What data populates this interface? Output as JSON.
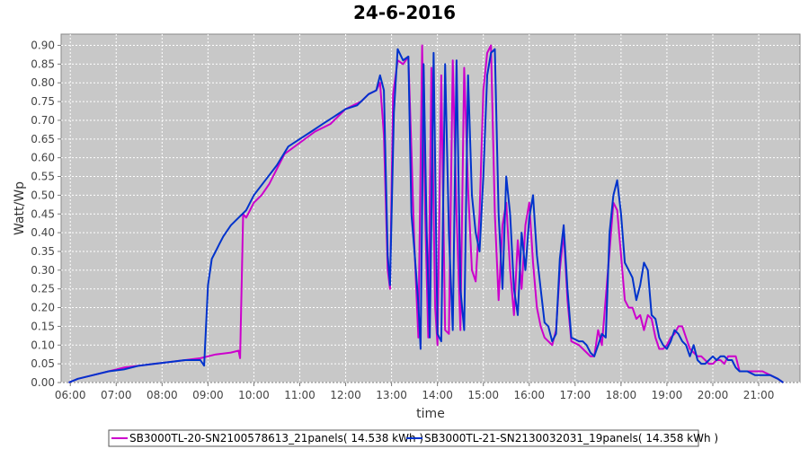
{
  "chart_data": {
    "type": "line",
    "title": "24-6-2016",
    "xlabel": "time",
    "ylabel": "Watt/Wp",
    "xlim": [
      "05:48",
      "21:54"
    ],
    "ylim": [
      0,
      0.93
    ],
    "x_ticks": [
      "06:00",
      "07:00",
      "08:00",
      "09:00",
      "10:00",
      "11:00",
      "12:00",
      "13:00",
      "14:00",
      "15:00",
      "16:00",
      "17:00",
      "18:00",
      "19:00",
      "20:00",
      "21:00"
    ],
    "y_ticks": [
      "0.00",
      "0.05",
      "0.10",
      "0.15",
      "0.20",
      "0.25",
      "0.30",
      "0.35",
      "0.40",
      "0.45",
      "0.50",
      "0.55",
      "0.60",
      "0.65",
      "0.70",
      "0.75",
      "0.80",
      "0.85",
      "0.90"
    ],
    "grid": true,
    "legend_position": "bottom",
    "colors": {
      "plot_background": "#c8c8c8",
      "grid": "#ffffff"
    },
    "series": [
      {
        "name": "SB3000TL-20-SN2100578613_21panels( 14.538 kWh )",
        "color": "#cc00cc",
        "points": [
          [
            "05:58",
            0.0
          ],
          [
            "06:10",
            0.01
          ],
          [
            "06:30",
            0.02
          ],
          [
            "06:50",
            0.03
          ],
          [
            "07:10",
            0.04
          ],
          [
            "07:30",
            0.045
          ],
          [
            "07:50",
            0.05
          ],
          [
            "08:10",
            0.055
          ],
          [
            "08:30",
            0.06
          ],
          [
            "08:50",
            0.065
          ],
          [
            "09:10",
            0.075
          ],
          [
            "09:30",
            0.08
          ],
          [
            "09:40",
            0.085
          ],
          [
            "09:42",
            0.065
          ],
          [
            "09:46",
            0.45
          ],
          [
            "09:50",
            0.44
          ],
          [
            "10:00",
            0.48
          ],
          [
            "10:10",
            0.5
          ],
          [
            "10:20",
            0.53
          ],
          [
            "10:30",
            0.57
          ],
          [
            "10:40",
            0.61
          ],
          [
            "11:00",
            0.64
          ],
          [
            "11:20",
            0.67
          ],
          [
            "11:40",
            0.69
          ],
          [
            "12:00",
            0.73
          ],
          [
            "12:20",
            0.75
          ],
          [
            "12:30",
            0.77
          ],
          [
            "12:40",
            0.78
          ],
          [
            "12:45",
            0.8
          ],
          [
            "12:50",
            0.66
          ],
          [
            "12:55",
            0.3
          ],
          [
            "12:58",
            0.25
          ],
          [
            "13:02",
            0.77
          ],
          [
            "13:08",
            0.86
          ],
          [
            "13:15",
            0.85
          ],
          [
            "13:22",
            0.87
          ],
          [
            "13:26",
            0.62
          ],
          [
            "13:30",
            0.36
          ],
          [
            "13:35",
            0.12
          ],
          [
            "13:40",
            0.9
          ],
          [
            "13:44",
            0.45
          ],
          [
            "13:48",
            0.12
          ],
          [
            "13:52",
            0.84
          ],
          [
            "13:57",
            0.2
          ],
          [
            "14:00",
            0.1
          ],
          [
            "14:05",
            0.82
          ],
          [
            "14:10",
            0.14
          ],
          [
            "14:15",
            0.13
          ],
          [
            "14:20",
            0.86
          ],
          [
            "14:25",
            0.45
          ],
          [
            "14:30",
            0.14
          ],
          [
            "14:35",
            0.84
          ],
          [
            "14:40",
            0.52
          ],
          [
            "14:45",
            0.3
          ],
          [
            "14:50",
            0.27
          ],
          [
            "14:55",
            0.45
          ],
          [
            "15:00",
            0.78
          ],
          [
            "15:05",
            0.88
          ],
          [
            "15:10",
            0.9
          ],
          [
            "15:15",
            0.45
          ],
          [
            "15:20",
            0.22
          ],
          [
            "15:25",
            0.42
          ],
          [
            "15:30",
            0.48
          ],
          [
            "15:35",
            0.3
          ],
          [
            "15:40",
            0.18
          ],
          [
            "15:45",
            0.38
          ],
          [
            "15:50",
            0.25
          ],
          [
            "15:55",
            0.42
          ],
          [
            "16:00",
            0.48
          ],
          [
            "16:05",
            0.32
          ],
          [
            "16:10",
            0.2
          ],
          [
            "16:15",
            0.15
          ],
          [
            "16:20",
            0.12
          ],
          [
            "16:25",
            0.11
          ],
          [
            "16:30",
            0.1
          ],
          [
            "16:35",
            0.14
          ],
          [
            "16:40",
            0.3
          ],
          [
            "16:45",
            0.4
          ],
          [
            "16:50",
            0.22
          ],
          [
            "16:55",
            0.11
          ],
          [
            "17:05",
            0.1
          ],
          [
            "17:15",
            0.08
          ],
          [
            "17:20",
            0.07
          ],
          [
            "17:25",
            0.07
          ],
          [
            "17:30",
            0.14
          ],
          [
            "17:35",
            0.1
          ],
          [
            "17:45",
            0.35
          ],
          [
            "17:50",
            0.48
          ],
          [
            "17:55",
            0.46
          ],
          [
            "18:00",
            0.34
          ],
          [
            "18:05",
            0.22
          ],
          [
            "18:10",
            0.2
          ],
          [
            "18:15",
            0.2
          ],
          [
            "18:20",
            0.17
          ],
          [
            "18:25",
            0.18
          ],
          [
            "18:30",
            0.14
          ],
          [
            "18:35",
            0.18
          ],
          [
            "18:40",
            0.17
          ],
          [
            "18:45",
            0.12
          ],
          [
            "18:50",
            0.09
          ],
          [
            "18:55",
            0.09
          ],
          [
            "19:00",
            0.1
          ],
          [
            "19:05",
            0.12
          ],
          [
            "19:10",
            0.13
          ],
          [
            "19:15",
            0.15
          ],
          [
            "19:20",
            0.15
          ],
          [
            "19:25",
            0.12
          ],
          [
            "19:30",
            0.09
          ],
          [
            "19:35",
            0.08
          ],
          [
            "19:40",
            0.07
          ],
          [
            "19:45",
            0.07
          ],
          [
            "19:50",
            0.06
          ],
          [
            "19:55",
            0.05
          ],
          [
            "20:00",
            0.05
          ],
          [
            "20:05",
            0.06
          ],
          [
            "20:10",
            0.06
          ],
          [
            "20:15",
            0.05
          ],
          [
            "20:20",
            0.07
          ],
          [
            "20:30",
            0.07
          ],
          [
            "20:35",
            0.03
          ],
          [
            "20:45",
            0.03
          ],
          [
            "20:55",
            0.03
          ],
          [
            "21:05",
            0.03
          ],
          [
            "21:15",
            0.02
          ],
          [
            "21:25",
            0.01
          ],
          [
            "21:32",
            0.0
          ]
        ]
      },
      {
        "name": "SB3000TL-21-SN2130032031_19panels( 14.358 kWh )",
        "color": "#0033cc",
        "points": [
          [
            "05:58",
            0.0
          ],
          [
            "06:10",
            0.01
          ],
          [
            "06:30",
            0.02
          ],
          [
            "06:50",
            0.03
          ],
          [
            "07:10",
            0.035
          ],
          [
            "07:30",
            0.045
          ],
          [
            "07:50",
            0.05
          ],
          [
            "08:10",
            0.055
          ],
          [
            "08:30",
            0.06
          ],
          [
            "08:50",
            0.06
          ],
          [
            "08:55",
            0.045
          ],
          [
            "09:00",
            0.26
          ],
          [
            "09:05",
            0.33
          ],
          [
            "09:10",
            0.35
          ],
          [
            "09:15",
            0.37
          ],
          [
            "09:20",
            0.39
          ],
          [
            "09:30",
            0.42
          ],
          [
            "09:40",
            0.44
          ],
          [
            "09:50",
            0.46
          ],
          [
            "10:00",
            0.5
          ],
          [
            "10:15",
            0.54
          ],
          [
            "10:30",
            0.58
          ],
          [
            "10:45",
            0.63
          ],
          [
            "11:00",
            0.65
          ],
          [
            "11:15",
            0.67
          ],
          [
            "11:30",
            0.69
          ],
          [
            "11:45",
            0.71
          ],
          [
            "12:00",
            0.73
          ],
          [
            "12:15",
            0.74
          ],
          [
            "12:30",
            0.77
          ],
          [
            "12:40",
            0.78
          ],
          [
            "12:45",
            0.82
          ],
          [
            "12:50",
            0.78
          ],
          [
            "12:55",
            0.34
          ],
          [
            "12:58",
            0.26
          ],
          [
            "13:03",
            0.72
          ],
          [
            "13:08",
            0.89
          ],
          [
            "13:15",
            0.86
          ],
          [
            "13:22",
            0.87
          ],
          [
            "13:26",
            0.45
          ],
          [
            "13:30",
            0.35
          ],
          [
            "13:35",
            0.21
          ],
          [
            "13:38",
            0.09
          ],
          [
            "13:42",
            0.85
          ],
          [
            "13:46",
            0.4
          ],
          [
            "13:50",
            0.12
          ],
          [
            "13:55",
            0.88
          ],
          [
            "14:00",
            0.13
          ],
          [
            "14:05",
            0.11
          ],
          [
            "14:10",
            0.85
          ],
          [
            "14:15",
            0.4
          ],
          [
            "14:20",
            0.14
          ],
          [
            "14:25",
            0.86
          ],
          [
            "14:30",
            0.25
          ],
          [
            "14:35",
            0.14
          ],
          [
            "14:40",
            0.82
          ],
          [
            "14:45",
            0.5
          ],
          [
            "14:50",
            0.4
          ],
          [
            "14:55",
            0.35
          ],
          [
            "15:00",
            0.55
          ],
          [
            "15:05",
            0.82
          ],
          [
            "15:10",
            0.88
          ],
          [
            "15:15",
            0.89
          ],
          [
            "15:20",
            0.45
          ],
          [
            "15:25",
            0.25
          ],
          [
            "15:30",
            0.55
          ],
          [
            "15:35",
            0.45
          ],
          [
            "15:40",
            0.25
          ],
          [
            "15:45",
            0.18
          ],
          [
            "15:50",
            0.4
          ],
          [
            "15:55",
            0.3
          ],
          [
            "16:00",
            0.44
          ],
          [
            "16:05",
            0.5
          ],
          [
            "16:10",
            0.34
          ],
          [
            "16:15",
            0.25
          ],
          [
            "16:20",
            0.16
          ],
          [
            "16:25",
            0.15
          ],
          [
            "16:30",
            0.11
          ],
          [
            "16:35",
            0.13
          ],
          [
            "16:40",
            0.33
          ],
          [
            "16:45",
            0.42
          ],
          [
            "16:50",
            0.25
          ],
          [
            "16:55",
            0.12
          ],
          [
            "17:05",
            0.11
          ],
          [
            "17:10",
            0.11
          ],
          [
            "17:15",
            0.1
          ],
          [
            "17:20",
            0.08
          ],
          [
            "17:25",
            0.07
          ],
          [
            "17:30",
            0.1
          ],
          [
            "17:35",
            0.13
          ],
          [
            "17:40",
            0.12
          ],
          [
            "17:45",
            0.4
          ],
          [
            "17:50",
            0.5
          ],
          [
            "17:55",
            0.54
          ],
          [
            "18:00",
            0.45
          ],
          [
            "18:05",
            0.32
          ],
          [
            "18:10",
            0.3
          ],
          [
            "18:15",
            0.28
          ],
          [
            "18:20",
            0.22
          ],
          [
            "18:25",
            0.26
          ],
          [
            "18:30",
            0.32
          ],
          [
            "18:35",
            0.3
          ],
          [
            "18:40",
            0.18
          ],
          [
            "18:45",
            0.17
          ],
          [
            "18:50",
            0.12
          ],
          [
            "18:55",
            0.1
          ],
          [
            "19:00",
            0.09
          ],
          [
            "19:05",
            0.11
          ],
          [
            "19:10",
            0.14
          ],
          [
            "19:15",
            0.13
          ],
          [
            "19:20",
            0.11
          ],
          [
            "19:25",
            0.1
          ],
          [
            "19:30",
            0.07
          ],
          [
            "19:35",
            0.1
          ],
          [
            "19:40",
            0.06
          ],
          [
            "19:45",
            0.05
          ],
          [
            "19:50",
            0.05
          ],
          [
            "19:55",
            0.06
          ],
          [
            "20:00",
            0.07
          ],
          [
            "20:05",
            0.06
          ],
          [
            "20:10",
            0.07
          ],
          [
            "20:15",
            0.07
          ],
          [
            "20:20",
            0.06
          ],
          [
            "20:25",
            0.06
          ],
          [
            "20:30",
            0.04
          ],
          [
            "20:35",
            0.03
          ],
          [
            "20:45",
            0.03
          ],
          [
            "20:55",
            0.02
          ],
          [
            "21:05",
            0.02
          ],
          [
            "21:15",
            0.02
          ],
          [
            "21:25",
            0.01
          ],
          [
            "21:32",
            0.0
          ]
        ]
      }
    ]
  }
}
